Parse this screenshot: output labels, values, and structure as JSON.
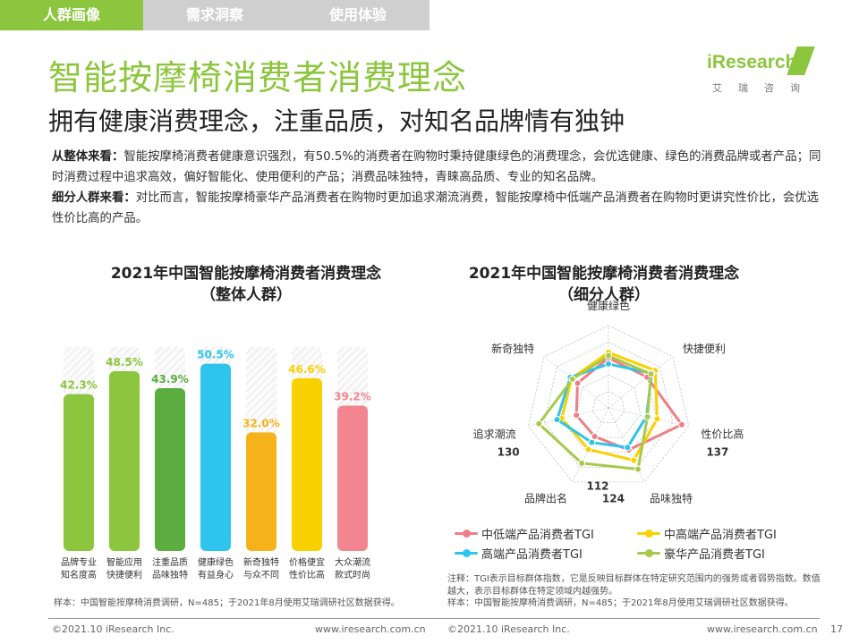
{
  "tabs": [
    {
      "label": "人群画像",
      "active": true
    },
    {
      "label": "需求洞察",
      "active": false
    },
    {
      "label": "使用体验",
      "active": false
    }
  ],
  "title": "智能按摩椅消费者消费理念",
  "subtitle": "拥有健康消费理念，注重品质，对知名品牌情有独钟",
  "logo": {
    "word": "iResearch",
    "sub": "艾瑞咨询"
  },
  "body": {
    "para1_head": "从整体来看：",
    "para1_text": "智能按摩椅消费者健康意识强烈，有50.5%的消费者在购物时秉持健康绿色的消费理念，会优选健康、绿色的消费品牌或者产品；同时消费过程中追求高效，偏好智能化、使用便利的产品；消费品味独特，青睐高品质、专业的知名品牌。",
    "para2_head": "细分人群来看：",
    "para2_text": "对比而言，智能按摩椅豪华产品消费者在购物时更加追求潮流消费，智能按摩椅中低端产品消费者在购物时更讲究性价比，会优选性价比高的产品。"
  },
  "bar_chart": {
    "title_line1": "2021年中国智能按摩椅消费者消费理念",
    "title_line2": "（整体人群）",
    "note": "样本：中国智能按摩椅消费调研，N=485；于2021年8月使用艾瑞调研社区数据获得。"
  },
  "radar_chart": {
    "title_line1": "2021年中国智能按摩椅消费者消费理念",
    "title_line2": "（细分人群）",
    "note1": "注释：TGI表示目标群体指数，它是反映目标群体在特定研究范围内的强势或者弱势指数。数值越大，表示目标群体在特定领域内越强势。",
    "note2": "样本：中国智能按摩椅消费调研，N=485；于2021年8月使用艾瑞调研社区数据获得。"
  },
  "chart_data": [
    {
      "type": "bar",
      "title": "2021年中国智能按摩椅消费者消费理念（整体人群）",
      "categories": [
        [
          "品牌专业",
          "知名度高"
        ],
        [
          "智能应用",
          "快捷便利"
        ],
        [
          "注重品质",
          "品味独特"
        ],
        [
          "健康绿色",
          "有益身心"
        ],
        [
          "新奇独特",
          "与众不同"
        ],
        [
          "价格便宜",
          "性价比高"
        ],
        [
          "大众潮流",
          "款式时尚"
        ]
      ],
      "values": [
        42.3,
        48.5,
        43.9,
        50.5,
        32.0,
        46.6,
        39.2
      ],
      "value_labels": [
        "42.3%",
        "48.5%",
        "43.9%",
        "50.5%",
        "32.0%",
        "46.6%",
        "39.2%"
      ],
      "colors": [
        "#8cc63e",
        "#8cc63e",
        "#5aad3e",
        "#2ec5ec",
        "#f6b21a",
        "#f9d100",
        "#f2858f"
      ],
      "ylim": [
        0,
        55
      ],
      "grid": false
    },
    {
      "type": "radar",
      "title": "2021年中国智能按摩椅消费者消费理念（细分人群）",
      "axes": [
        "健康绿色",
        "快捷便利",
        "性价比高",
        "品味独特",
        "品牌出名",
        "追求潮流",
        "新奇独特"
      ],
      "axis_annotations": [
        "",
        "",
        "137",
        "124",
        "112",
        "130",
        ""
      ],
      "rmax": 150,
      "series": [
        {
          "name": "中低端产品消费者TGI",
          "color": "#ee7f86",
          "values": [
            91,
            90,
            137,
            85,
            58,
            60,
            72
          ]
        },
        {
          "name": "中高端产品消费者TGI",
          "color": "#f9d100",
          "values": [
            101,
            109,
            91,
            106,
            84,
            87,
            86
          ]
        },
        {
          "name": "高端产品消费者TGI",
          "color": "#2ec5ec",
          "values": [
            80,
            101,
            71,
            80,
            70,
            96,
            89
          ]
        },
        {
          "name": "豪华产品消费者TGI",
          "color": "#a9c94d",
          "values": [
            95,
            99,
            73,
            124,
            112,
            130,
            84
          ]
        }
      ]
    }
  ],
  "footer": {
    "left1": "©2021.10 iResearch Inc.",
    "mid1": "www.iresearch.com.cn",
    "left2": "©2021.10 iResearch Inc.",
    "mid2": "www.iresearch.com.cn",
    "page": "17"
  }
}
